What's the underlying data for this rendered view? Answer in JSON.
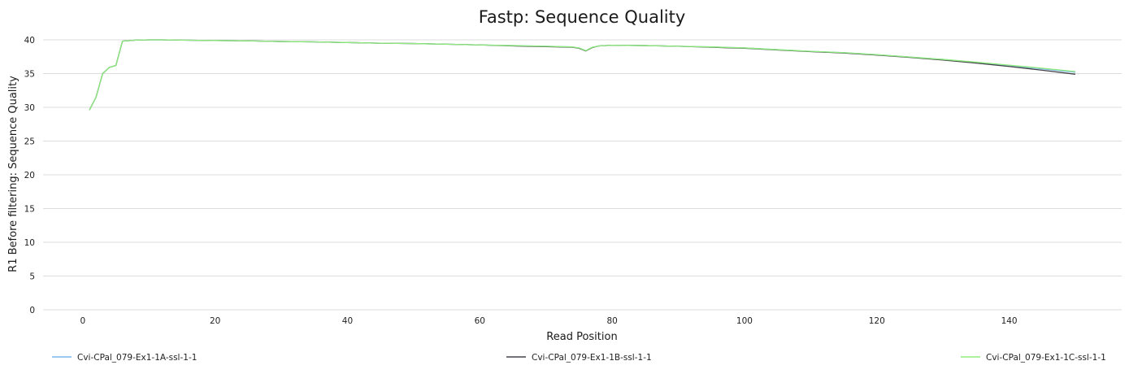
{
  "chart_data": {
    "type": "line",
    "title": "Fastp: Sequence Quality",
    "xlabel": "Read Position",
    "ylabel": "R1 Before filtering: Sequence Quality",
    "xlim": [
      -6,
      157
    ],
    "ylim": [
      0,
      40
    ],
    "xticks": [
      0,
      20,
      40,
      60,
      80,
      100,
      120,
      140
    ],
    "yticks": [
      0,
      5,
      10,
      15,
      20,
      25,
      30,
      35,
      40
    ],
    "grid": true,
    "legend_position": "bottom",
    "series": [
      {
        "name": "Cvi-CPal_079-Ex1-1A-ssl-1-1",
        "color": "#7cb5ec",
        "points": [
          [
            1,
            29.6
          ],
          [
            2,
            31.5
          ],
          [
            3,
            35.0
          ],
          [
            4,
            35.9
          ],
          [
            5,
            36.2
          ],
          [
            6,
            39.8
          ],
          [
            8,
            39.95
          ],
          [
            10,
            40.0
          ],
          [
            12,
            40.0
          ],
          [
            15,
            39.95
          ],
          [
            20,
            39.9
          ],
          [
            25,
            39.85
          ],
          [
            30,
            39.75
          ],
          [
            35,
            39.7
          ],
          [
            40,
            39.6
          ],
          [
            45,
            39.5
          ],
          [
            50,
            39.45
          ],
          [
            55,
            39.35
          ],
          [
            60,
            39.25
          ],
          [
            65,
            39.15
          ],
          [
            70,
            39.05
          ],
          [
            74,
            38.95
          ],
          [
            75,
            38.8
          ],
          [
            76,
            38.4
          ],
          [
            77,
            38.9
          ],
          [
            78,
            39.1
          ],
          [
            80,
            39.2
          ],
          [
            85,
            39.15
          ],
          [
            90,
            39.05
          ],
          [
            95,
            38.95
          ],
          [
            100,
            38.8
          ],
          [
            105,
            38.55
          ],
          [
            110,
            38.3
          ],
          [
            115,
            38.1
          ],
          [
            120,
            37.8
          ],
          [
            125,
            37.45
          ],
          [
            130,
            37.1
          ],
          [
            135,
            36.65
          ],
          [
            140,
            36.2
          ],
          [
            145,
            35.7
          ],
          [
            150,
            35.2
          ]
        ]
      },
      {
        "name": "Cvi-CPal_079-Ex1-1B-ssl-1-1",
        "color": "#434348",
        "points": [
          [
            1,
            29.6
          ],
          [
            2,
            31.5
          ],
          [
            3,
            35.0
          ],
          [
            4,
            35.9
          ],
          [
            5,
            36.2
          ],
          [
            6,
            39.8
          ],
          [
            8,
            39.95
          ],
          [
            10,
            40.0
          ],
          [
            12,
            40.0
          ],
          [
            15,
            39.95
          ],
          [
            20,
            39.9
          ],
          [
            25,
            39.85
          ],
          [
            30,
            39.75
          ],
          [
            35,
            39.7
          ],
          [
            40,
            39.6
          ],
          [
            45,
            39.5
          ],
          [
            50,
            39.45
          ],
          [
            55,
            39.35
          ],
          [
            60,
            39.25
          ],
          [
            65,
            39.1
          ],
          [
            70,
            39.0
          ],
          [
            74,
            38.9
          ],
          [
            75,
            38.75
          ],
          [
            76,
            38.35
          ],
          [
            77,
            38.85
          ],
          [
            78,
            39.1
          ],
          [
            80,
            39.2
          ],
          [
            85,
            39.15
          ],
          [
            90,
            39.05
          ],
          [
            95,
            38.9
          ],
          [
            100,
            38.75
          ],
          [
            105,
            38.5
          ],
          [
            110,
            38.25
          ],
          [
            115,
            38.05
          ],
          [
            120,
            37.75
          ],
          [
            125,
            37.4
          ],
          [
            130,
            37.0
          ],
          [
            135,
            36.55
          ],
          [
            140,
            36.05
          ],
          [
            145,
            35.5
          ],
          [
            150,
            34.9
          ]
        ]
      },
      {
        "name": "Cvi-CPal_079-Ex1-1C-ssl-1-1",
        "color": "#90ed7d",
        "points": [
          [
            1,
            29.6
          ],
          [
            2,
            31.5
          ],
          [
            3,
            35.0
          ],
          [
            4,
            35.9
          ],
          [
            5,
            36.2
          ],
          [
            6,
            39.8
          ],
          [
            8,
            39.95
          ],
          [
            10,
            40.0
          ],
          [
            12,
            40.0
          ],
          [
            15,
            39.95
          ],
          [
            20,
            39.9
          ],
          [
            25,
            39.85
          ],
          [
            30,
            39.75
          ],
          [
            35,
            39.7
          ],
          [
            40,
            39.6
          ],
          [
            45,
            39.5
          ],
          [
            50,
            39.45
          ],
          [
            55,
            39.35
          ],
          [
            60,
            39.25
          ],
          [
            65,
            39.15
          ],
          [
            70,
            39.05
          ],
          [
            74,
            38.95
          ],
          [
            75,
            38.8
          ],
          [
            76,
            38.4
          ],
          [
            77,
            38.9
          ],
          [
            78,
            39.1
          ],
          [
            80,
            39.2
          ],
          [
            85,
            39.15
          ],
          [
            90,
            39.05
          ],
          [
            95,
            38.95
          ],
          [
            100,
            38.8
          ],
          [
            105,
            38.55
          ],
          [
            110,
            38.3
          ],
          [
            115,
            38.1
          ],
          [
            120,
            37.8
          ],
          [
            125,
            37.45
          ],
          [
            130,
            37.1
          ],
          [
            135,
            36.7
          ],
          [
            140,
            36.25
          ],
          [
            145,
            35.8
          ],
          [
            150,
            35.3
          ]
        ]
      }
    ]
  }
}
